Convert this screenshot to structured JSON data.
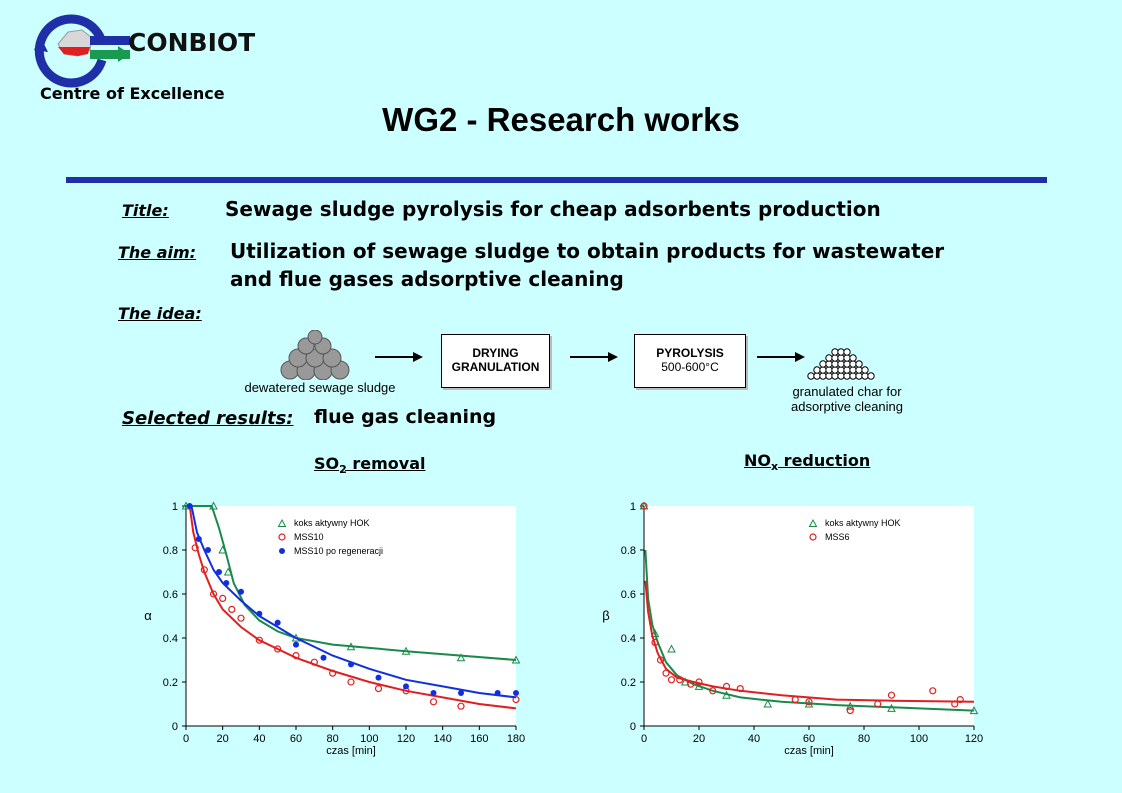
{
  "logo": {
    "name": "CONBIOT",
    "subtitle": "Centre of Excellence"
  },
  "page_title": "WG2 - Research works",
  "title_label": "Title:",
  "title_text": "Sewage sludge pyrolysis for cheap adsorbents production",
  "aim_label": "The aim:",
  "aim_line1": "Utilization of sewage sludge to obtain products for wastewater",
  "aim_line2": "and flue gases adsorptive cleaning",
  "idea_label": "The idea:",
  "flow": {
    "input_caption": "dewatered sewage sludge",
    "step1_line1": "DRYING",
    "step1_line2": "GRANULATION",
    "step2_line1": "PYROLYSIS",
    "step2_line2": "500-600°C",
    "output_line1": "granulated char for",
    "output_line2": "adsorptive cleaning"
  },
  "results_label": "Selected results:",
  "results_text": "flue gas cleaning",
  "chart1_title_main": "SO",
  "chart1_title_sub": "2",
  "chart1_title_rest": " removal",
  "chart2_title_main": "NO",
  "chart2_title_sub": "x",
  "chart2_title_rest": " reduction",
  "chart_data": [
    {
      "type": "scatter",
      "xlabel": "czas [min]",
      "ylabel": "α",
      "xlim": [
        0,
        180
      ],
      "ylim": [
        0,
        1
      ],
      "xticks": [
        0,
        20,
        40,
        60,
        80,
        100,
        120,
        140,
        160,
        180
      ],
      "yticks": [
        0,
        0.2,
        0.4,
        0.6,
        0.8,
        1
      ],
      "legend_position": "top-right",
      "series": [
        {
          "name": "koks aktywny HOK",
          "color": "#1a8a4a",
          "marker": "triangle",
          "points": [
            [
              0,
              1
            ],
            [
              15,
              1
            ],
            [
              20,
              0.8
            ],
            [
              23,
              0.7
            ],
            [
              60,
              0.4
            ],
            [
              90,
              0.36
            ],
            [
              120,
              0.34
            ],
            [
              150,
              0.31
            ],
            [
              180,
              0.3
            ]
          ],
          "fit": [
            [
              0,
              1
            ],
            [
              14,
              1
            ],
            [
              18,
              0.9
            ],
            [
              22,
              0.78
            ],
            [
              26,
              0.65
            ],
            [
              32,
              0.55
            ],
            [
              40,
              0.48
            ],
            [
              50,
              0.43
            ],
            [
              60,
              0.4
            ],
            [
              80,
              0.37
            ],
            [
              100,
              0.355
            ],
            [
              120,
              0.34
            ],
            [
              150,
              0.32
            ],
            [
              180,
              0.3
            ]
          ]
        },
        {
          "name": "MSS10",
          "color": "#e02020",
          "marker": "circle-open",
          "points": [
            [
              5,
              0.81
            ],
            [
              10,
              0.71
            ],
            [
              15,
              0.6
            ],
            [
              20,
              0.58
            ],
            [
              25,
              0.53
            ],
            [
              30,
              0.49
            ],
            [
              40,
              0.39
            ],
            [
              50,
              0.35
            ],
            [
              60,
              0.32
            ],
            [
              70,
              0.29
            ],
            [
              80,
              0.24
            ],
            [
              90,
              0.2
            ],
            [
              105,
              0.17
            ],
            [
              120,
              0.16
            ],
            [
              135,
              0.11
            ],
            [
              150,
              0.09
            ],
            [
              180,
              0.12
            ]
          ],
          "fit": [
            [
              2,
              1
            ],
            [
              4,
              0.88
            ],
            [
              7,
              0.78
            ],
            [
              10,
              0.7
            ],
            [
              15,
              0.6
            ],
            [
              20,
              0.53
            ],
            [
              30,
              0.45
            ],
            [
              40,
              0.39
            ],
            [
              50,
              0.35
            ],
            [
              60,
              0.31
            ],
            [
              80,
              0.25
            ],
            [
              100,
              0.2
            ],
            [
              120,
              0.16
            ],
            [
              140,
              0.13
            ],
            [
              160,
              0.1
            ],
            [
              180,
              0.08
            ]
          ]
        },
        {
          "name": "MSS10 po regeneracji",
          "color": "#1030e0",
          "marker": "circle-filled",
          "points": [
            [
              2,
              1
            ],
            [
              7,
              0.85
            ],
            [
              12,
              0.8
            ],
            [
              18,
              0.7
            ],
            [
              22,
              0.65
            ],
            [
              30,
              0.61
            ],
            [
              40,
              0.51
            ],
            [
              50,
              0.47
            ],
            [
              60,
              0.37
            ],
            [
              75,
              0.31
            ],
            [
              90,
              0.28
            ],
            [
              105,
              0.22
            ],
            [
              120,
              0.18
            ],
            [
              135,
              0.15
            ],
            [
              150,
              0.15
            ],
            [
              170,
              0.15
            ],
            [
              180,
              0.15
            ]
          ],
          "fit": [
            [
              3,
              1
            ],
            [
              6,
              0.88
            ],
            [
              10,
              0.8
            ],
            [
              15,
              0.71
            ],
            [
              20,
              0.65
            ],
            [
              30,
              0.57
            ],
            [
              40,
              0.5
            ],
            [
              50,
              0.45
            ],
            [
              60,
              0.4
            ],
            [
              80,
              0.32
            ],
            [
              100,
              0.26
            ],
            [
              120,
              0.21
            ],
            [
              140,
              0.18
            ],
            [
              160,
              0.15
            ],
            [
              180,
              0.13
            ]
          ]
        }
      ]
    },
    {
      "type": "scatter",
      "xlabel": "czas [min]",
      "ylabel": "β",
      "xlim": [
        0,
        120
      ],
      "ylim": [
        0,
        1
      ],
      "xticks": [
        0,
        20,
        40,
        60,
        80,
        100,
        120
      ],
      "yticks": [
        0,
        0.2,
        0.4,
        0.6,
        0.8,
        1
      ],
      "legend_position": "top-right",
      "series": [
        {
          "name": "koks aktywny HOK",
          "color": "#1a8a4a",
          "marker": "triangle",
          "points": [
            [
              0,
              1
            ],
            [
              4,
              0.42
            ],
            [
              10,
              0.35
            ],
            [
              15,
              0.2
            ],
            [
              20,
              0.18
            ],
            [
              30,
              0.14
            ],
            [
              45,
              0.1
            ],
            [
              60,
              0.1
            ],
            [
              75,
              0.09
            ],
            [
              90,
              0.08
            ],
            [
              120,
              0.07
            ]
          ],
          "fit": [
            [
              0.5,
              0.8
            ],
            [
              1.5,
              0.58
            ],
            [
              3,
              0.46
            ],
            [
              5,
              0.38
            ],
            [
              8,
              0.29
            ],
            [
              12,
              0.23
            ],
            [
              18,
              0.19
            ],
            [
              25,
              0.16
            ],
            [
              35,
              0.13
            ],
            [
              50,
              0.11
            ],
            [
              70,
              0.095
            ],
            [
              90,
              0.085
            ],
            [
              120,
              0.07
            ]
          ]
        },
        {
          "name": "MSS6",
          "color": "#e02020",
          "marker": "circle-open",
          "points": [
            [
              0,
              1
            ],
            [
              4,
              0.38
            ],
            [
              6,
              0.3
            ],
            [
              8,
              0.24
            ],
            [
              10,
              0.21
            ],
            [
              13,
              0.21
            ],
            [
              17,
              0.19
            ],
            [
              20,
              0.2
            ],
            [
              25,
              0.16
            ],
            [
              30,
              0.18
            ],
            [
              35,
              0.17
            ],
            [
              55,
              0.12
            ],
            [
              60,
              0.11
            ],
            [
              75,
              0.07
            ],
            [
              85,
              0.1
            ],
            [
              90,
              0.14
            ],
            [
              105,
              0.16
            ],
            [
              113,
              0.1
            ],
            [
              115,
              0.12
            ]
          ],
          "fit": [
            [
              0.5,
              0.66
            ],
            [
              1.5,
              0.52
            ],
            [
              3,
              0.41
            ],
            [
              5,
              0.33
            ],
            [
              8,
              0.26
            ],
            [
              12,
              0.22
            ],
            [
              18,
              0.2
            ],
            [
              25,
              0.18
            ],
            [
              35,
              0.16
            ],
            [
              50,
              0.14
            ],
            [
              70,
              0.12
            ],
            [
              90,
              0.115
            ],
            [
              120,
              0.11
            ]
          ]
        }
      ]
    }
  ]
}
